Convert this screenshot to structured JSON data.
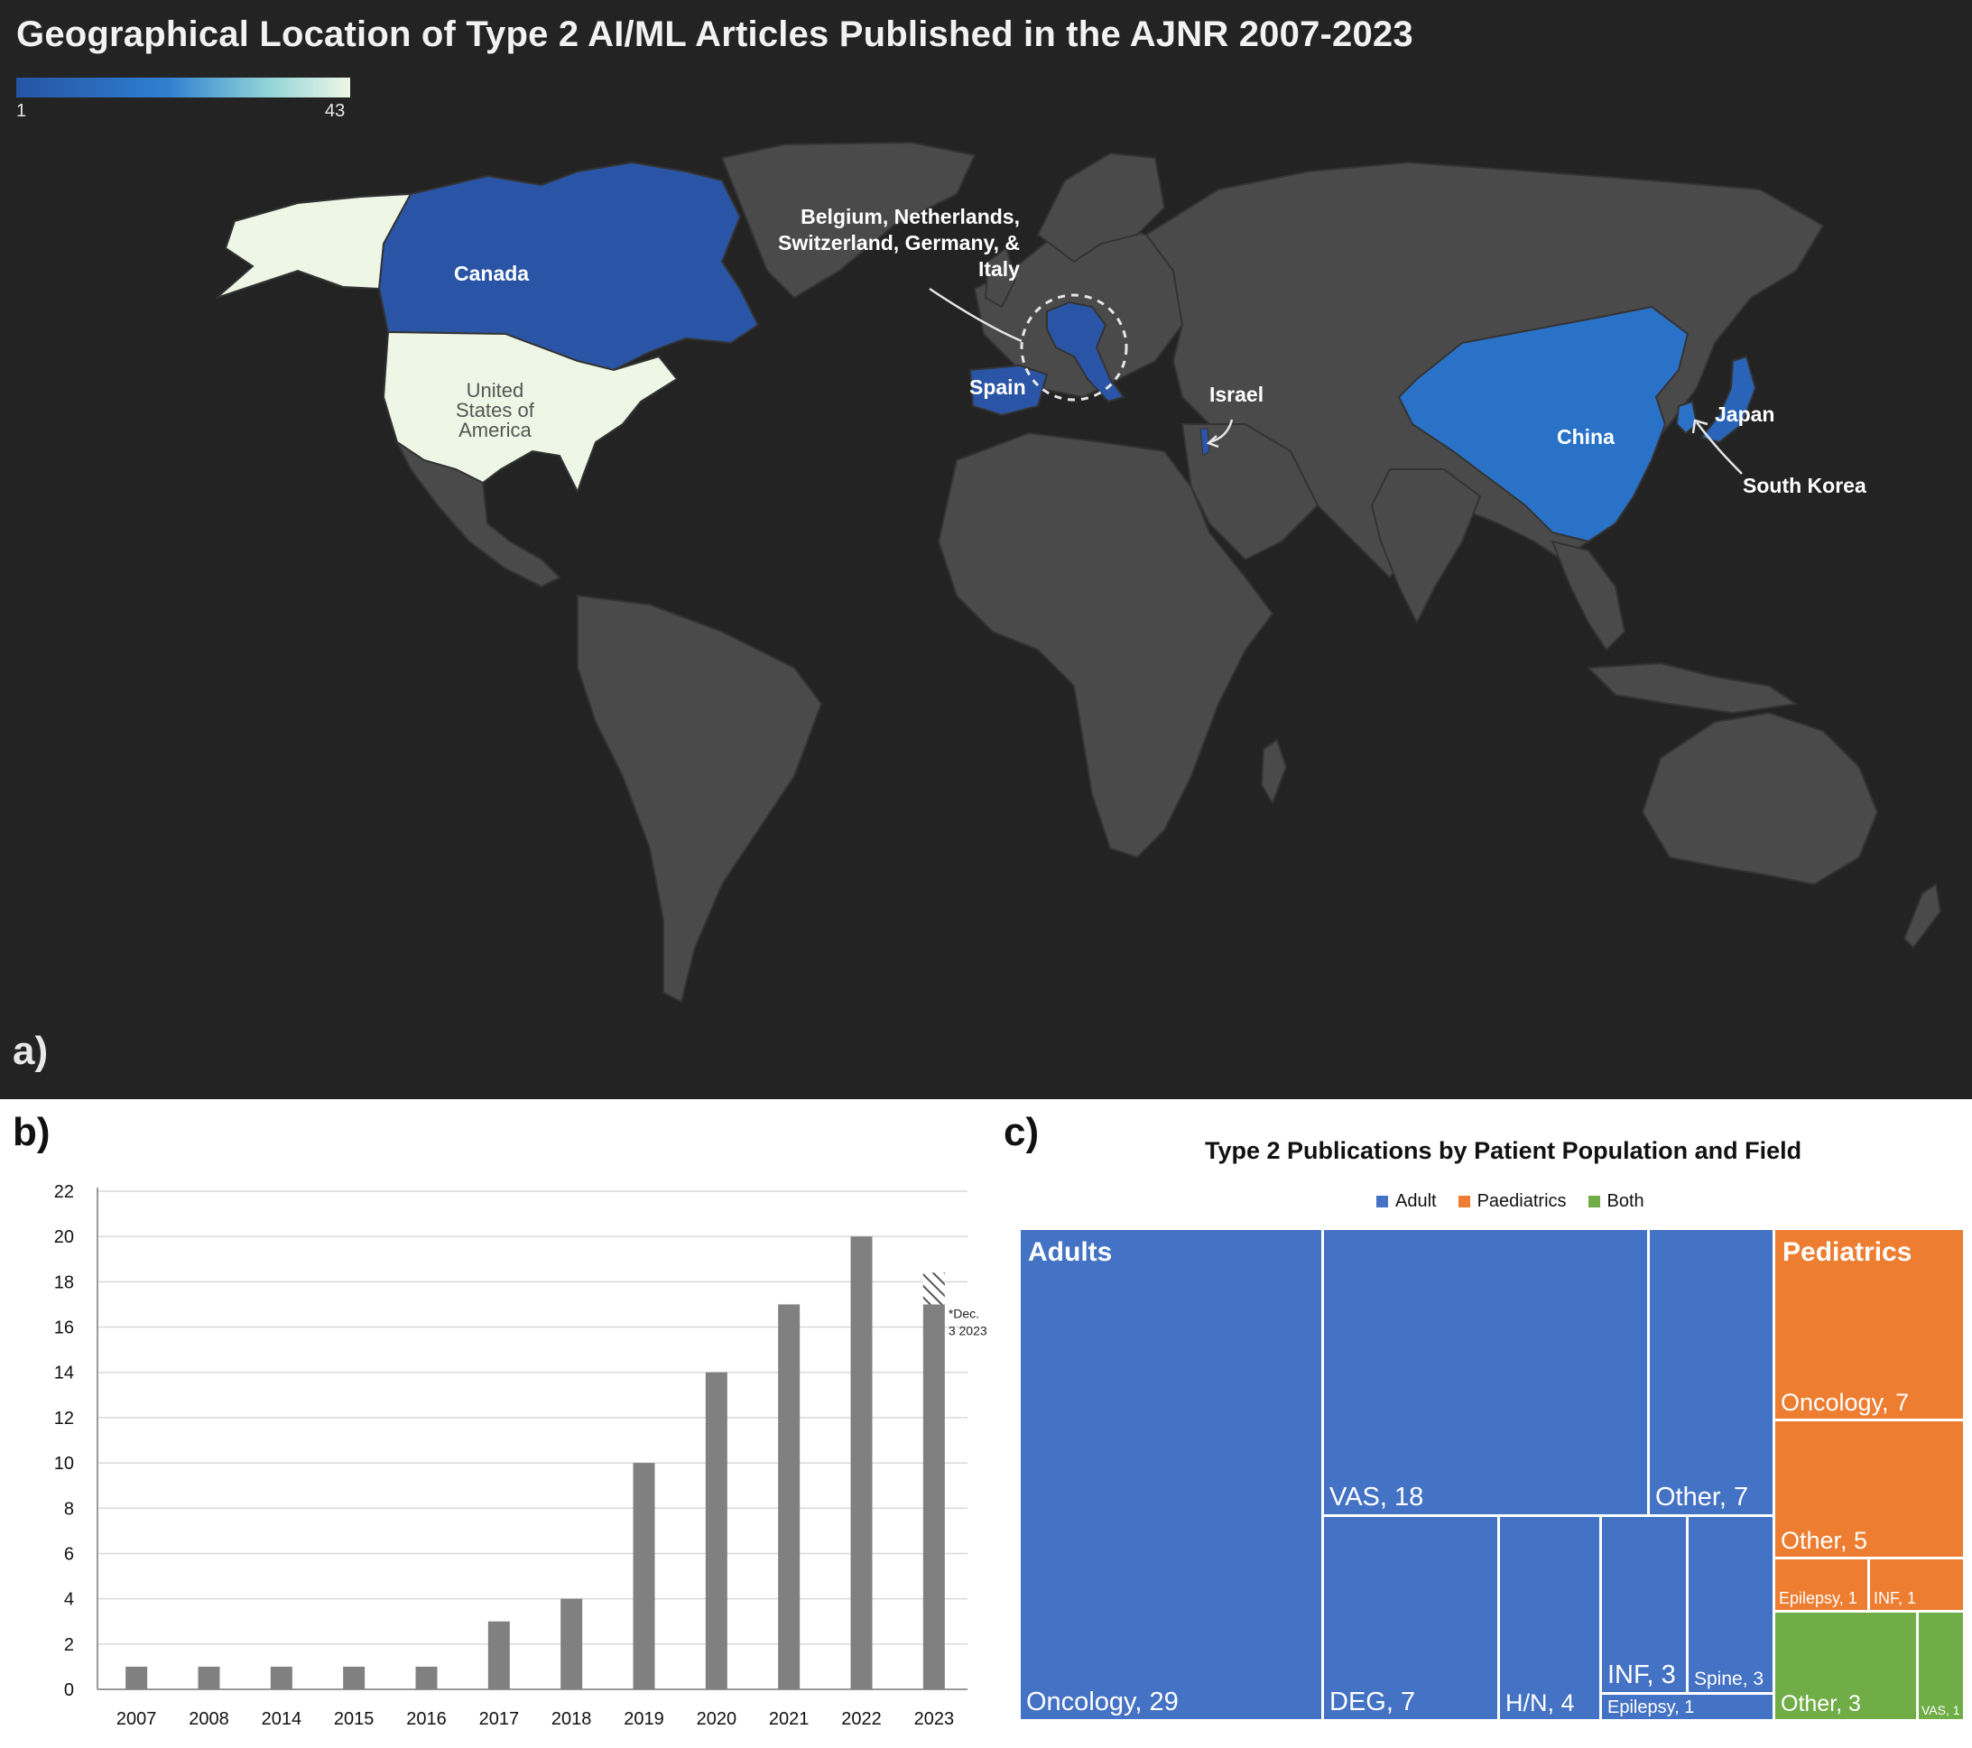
{
  "panel_a": {
    "tag": "a)",
    "title": "Geographical Location of Type 2 AI/ML Articles Published in the AJNR 2007-2023",
    "colorbar": {
      "min_label": "1",
      "max_label": "43",
      "low_color": "#2554a4",
      "mid_color": "#2f7fd0",
      "high_color": "#eef7e6"
    },
    "labels": {
      "canada": "Canada",
      "usa_line1": "United",
      "usa_line2": "States of",
      "usa_line3": "America",
      "europe_line1": "Belgium, Netherlands,",
      "europe_line2": "Switzerland, Germany, &",
      "europe_line3": "Italy",
      "spain": "Spain",
      "israel": "Israel",
      "china": "China",
      "japan": "Japan",
      "south_korea": "South Korea"
    },
    "colors": {
      "background": "#232323",
      "land": "#4a4a4a",
      "canada": "#2a55a6",
      "usa": "#eef7e6",
      "china": "#2a72c8",
      "europe": "#2a55a6",
      "japan": "#2a64b8"
    }
  },
  "panel_b": {
    "tag": "b)",
    "footnote_line1": "*Dec.",
    "footnote_line2": "3 2023",
    "bar_color": "#808080"
  },
  "panel_c": {
    "tag": "c)",
    "title": "Type 2 Publications by Patient Population and Field",
    "legend": [
      {
        "label": "Adult",
        "color": "#4472c4"
      },
      {
        "label": "Paediatrics",
        "color": "#ed7d31"
      },
      {
        "label": "Both",
        "color": "#70ad47"
      }
    ],
    "group_headers": {
      "adults": "Adults",
      "pediatrics": "Pediatrics"
    },
    "tiles": {
      "oncology_adult": "Oncology, 29",
      "vas": "VAS, 18",
      "other_adult": "Other, 7",
      "deg": "DEG, 7",
      "hn": "H/N, 4",
      "inf_adult": "INF, 3",
      "spine": "Spine, 3",
      "epilepsy_adult": "Epilepsy, 1",
      "oncology_ped": "Oncology, 7",
      "other_ped": "Other, 5",
      "epilepsy_ped": "Epilepsy, 1",
      "inf_ped": "INF, 1",
      "other_both": "Other, 3",
      "vas_both": "VAS, 1"
    }
  },
  "chart_data": [
    {
      "type": "bar",
      "categories": [
        "2007",
        "2008",
        "2014",
        "2015",
        "2016",
        "2017",
        "2018",
        "2019",
        "2020",
        "2021",
        "2022",
        "2023"
      ],
      "values": [
        1,
        1,
        1,
        1,
        1,
        3,
        4,
        10,
        14,
        17,
        20,
        17
      ],
      "projected_extra_2023": 1.4,
      "title": "",
      "xlabel": "",
      "ylabel": "",
      "ylim": [
        0,
        22
      ],
      "yticks": [
        "0",
        "2",
        "4",
        "6",
        "8",
        "10",
        "12",
        "14",
        "16",
        "18",
        "20",
        "22"
      ],
      "grid": true
    },
    {
      "type": "treemap",
      "title": "Type 2 Publications by Patient Population and Field",
      "groups": [
        {
          "name": "Adult",
          "items": [
            [
              "Oncology",
              29
            ],
            [
              "VAS",
              18
            ],
            [
              "Other",
              7
            ],
            [
              "DEG",
              7
            ],
            [
              "H/N",
              4
            ],
            [
              "INF",
              3
            ],
            [
              "Spine",
              3
            ],
            [
              "Epilepsy",
              1
            ]
          ]
        },
        {
          "name": "Paediatrics",
          "items": [
            [
              "Oncology",
              7
            ],
            [
              "Other",
              5
            ],
            [
              "Epilepsy",
              1
            ],
            [
              "INF",
              1
            ]
          ]
        },
        {
          "name": "Both",
          "items": [
            [
              "Other",
              3
            ],
            [
              "VAS",
              1
            ]
          ]
        }
      ]
    }
  ]
}
